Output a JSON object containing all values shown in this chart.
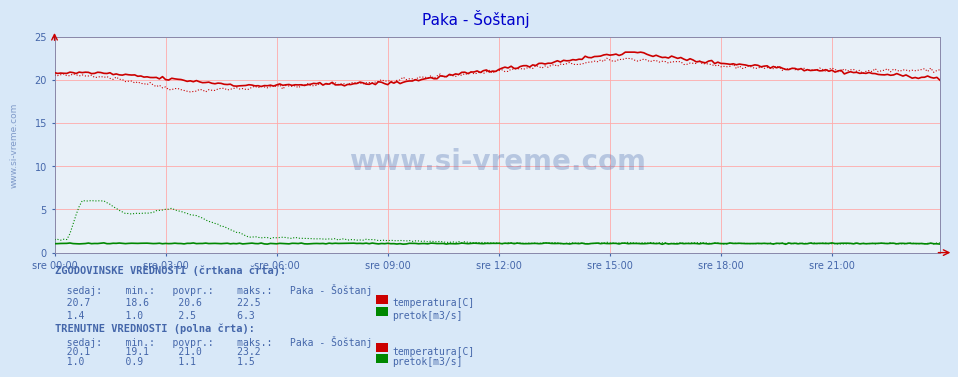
{
  "title": "Paka - Šoštanj",
  "title_color": "#0000cc",
  "bg_color": "#d8e8f8",
  "plot_bg_color": "#e8f0f8",
  "x_labels": [
    "sre 00:00",
    "sre 03:00",
    "sre 06:00",
    "sre 09:00",
    "sre 12:00",
    "sre 15:00",
    "sre 18:00",
    "sre 21:00"
  ],
  "x_ticks": [
    0,
    36,
    72,
    108,
    144,
    180,
    216,
    252
  ],
  "total_points": 288,
  "ylim": [
    0,
    25
  ],
  "yticks": [
    0,
    5,
    10,
    15,
    20,
    25
  ],
  "temp_color": "#cc0000",
  "flow_color": "#008800",
  "watermark_color": "#4466aa",
  "label_color": "#4466aa",
  "hist_temp_sedaj": 20.7,
  "hist_temp_min": 18.6,
  "hist_temp_povpr": 20.6,
  "hist_temp_maks": 22.5,
  "hist_flow_sedaj": 1.4,
  "hist_flow_min": 1.0,
  "hist_flow_povpr": 2.5,
  "hist_flow_maks": 6.3,
  "curr_temp_sedaj": 20.1,
  "curr_temp_min": 19.1,
  "curr_temp_povpr": 21.0,
  "curr_temp_maks": 23.2,
  "curr_flow_sedaj": 1.0,
  "curr_flow_min": 0.9,
  "curr_flow_povpr": 1.1,
  "curr_flow_maks": 1.5
}
